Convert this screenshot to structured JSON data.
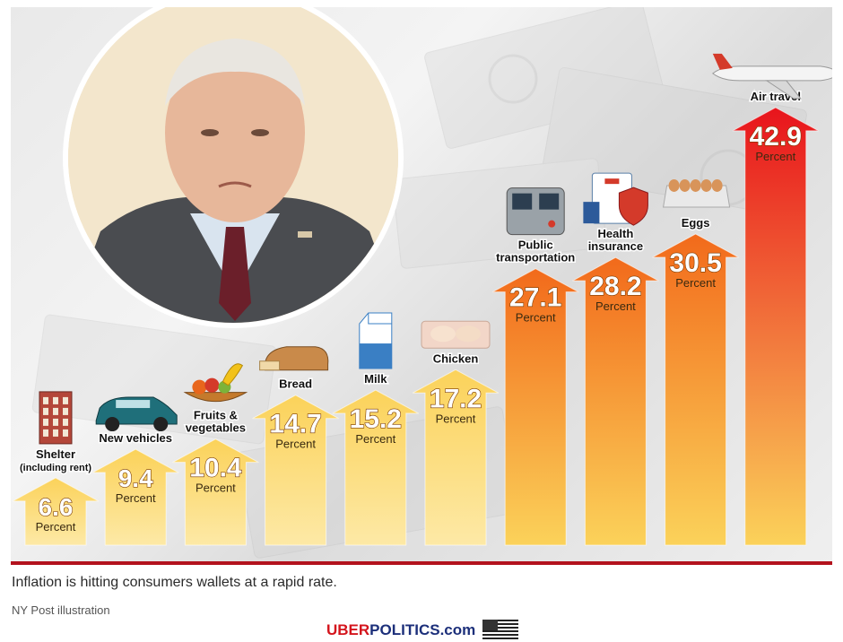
{
  "chart_data": {
    "type": "bar",
    "title": "",
    "xlabel": "",
    "ylabel": "",
    "unit_label": "Percent",
    "categories": [
      {
        "label": "Shelter",
        "sublabel": "(including rent)",
        "icon": "townhouse-icon"
      },
      {
        "label": "New vehicles",
        "sublabel": "",
        "icon": "suv-car-icon"
      },
      {
        "label": "Fruits &",
        "sublabel": "vegetables",
        "icon": "fruit-bowl-icon"
      },
      {
        "label": "Bread",
        "sublabel": "",
        "icon": "bread-loaf-icon"
      },
      {
        "label": "Milk",
        "sublabel": "",
        "icon": "milk-carton-icon"
      },
      {
        "label": "Chicken",
        "sublabel": "",
        "icon": "chicken-tray-icon"
      },
      {
        "label": "Public",
        "sublabel": "transportation",
        "icon": "subway-train-icon"
      },
      {
        "label": "Health",
        "sublabel": "insurance",
        "icon": "health-insurance-icon"
      },
      {
        "label": "Eggs",
        "sublabel": "",
        "icon": "egg-carton-icon"
      },
      {
        "label": "Air travel",
        "sublabel": "",
        "icon": "airplane-icon"
      }
    ],
    "values": [
      6.6,
      9.4,
      10.4,
      14.7,
      15.2,
      17.2,
      27.1,
      28.2,
      30.5,
      42.9
    ],
    "ylim": [
      0,
      45
    ],
    "grid": false,
    "legend": "none",
    "colors": {
      "bar_top_high": "#e8141c",
      "bar_top_mid": "#f26a1b",
      "bar_bottom": "#fbd25a",
      "bar_base_low": "#fde9a6"
    }
  },
  "caption": "Inflation is hitting consumers wallets at a rapid rate.",
  "credit": "NY Post illustration",
  "watermark": {
    "part1": "UBER",
    "part2": "POLITICS.com",
    "icon": "us-flag-icon"
  },
  "photo": {
    "icon": "portrait-photo-icon"
  }
}
